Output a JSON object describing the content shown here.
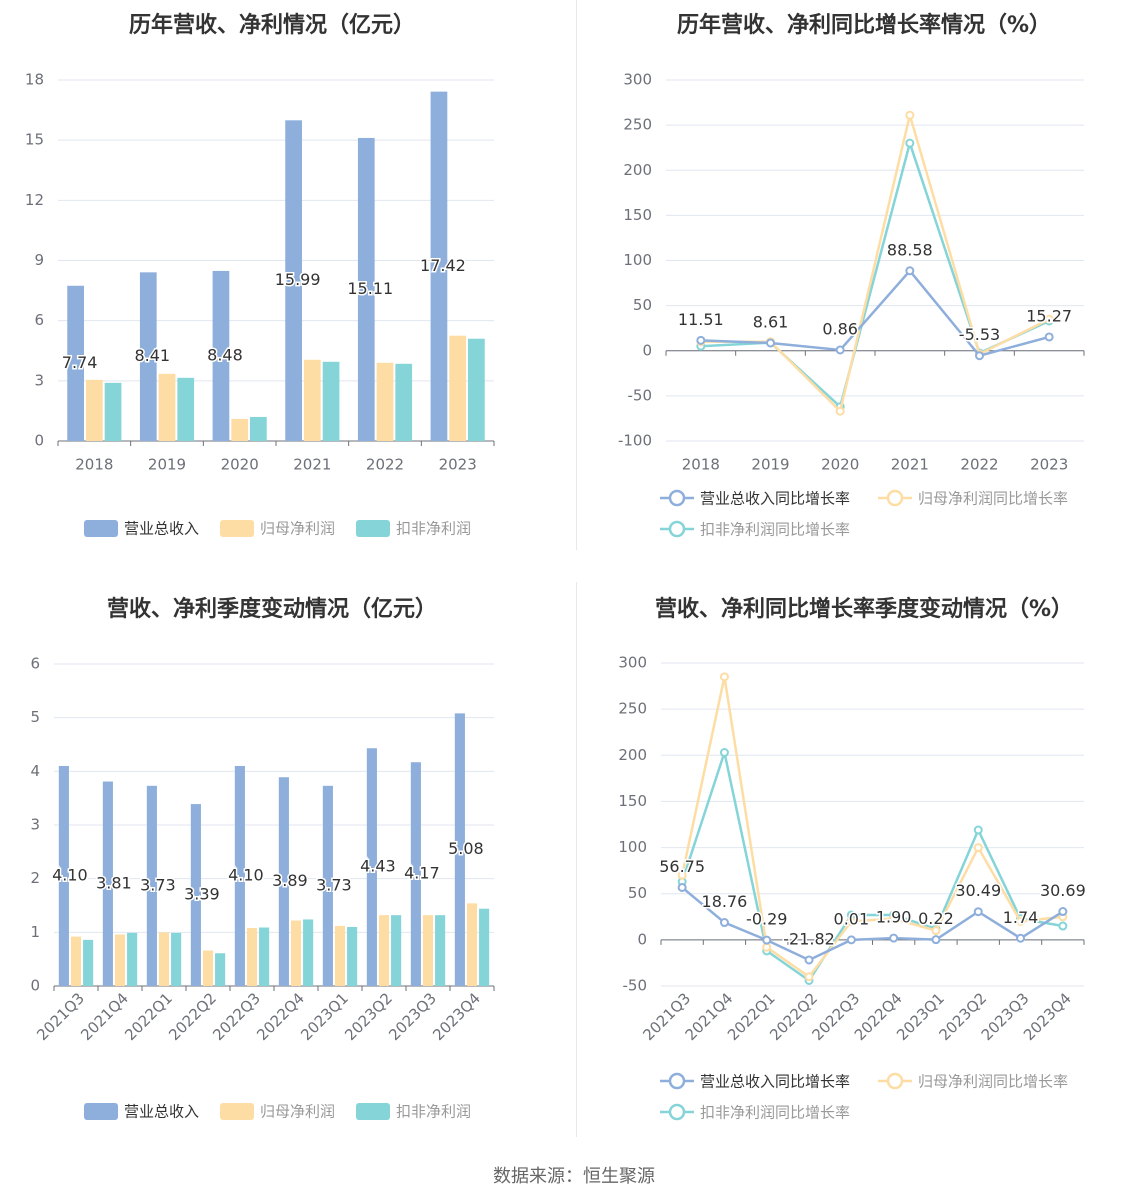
{
  "colors": {
    "revenue": "#8eaedb",
    "parent_profit": "#fedda4",
    "deducted_profit": "#84d4d8",
    "title": "#333333",
    "axis_text": "#6e7079",
    "grid": "#e0e6f1",
    "label": "#333333"
  },
  "source_text": "数据来源：恒生聚源",
  "chart_data": [
    {
      "type": "bar",
      "title": "历年营收、净利情况（亿元）",
      "categories": [
        "2018",
        "2019",
        "2020",
        "2021",
        "2022",
        "2023"
      ],
      "yticks": [
        "0",
        "3",
        "6",
        "9",
        "12",
        "15",
        "18"
      ],
      "ylim": [
        0,
        18
      ],
      "series": [
        {
          "name": "营业总收入",
          "values": [
            7.74,
            8.41,
            8.48,
            15.99,
            15.11,
            17.42
          ],
          "labels": [
            "7.74",
            "8.41",
            "8.48",
            "15.99",
            "15.11",
            "17.42"
          ]
        },
        {
          "name": "归母净利润",
          "values": [
            3.05,
            3.35,
            1.1,
            4.05,
            3.9,
            5.25
          ]
        },
        {
          "name": "扣非净利润",
          "values": [
            2.9,
            3.15,
            1.2,
            3.95,
            3.85,
            5.1
          ]
        }
      ]
    },
    {
      "type": "line",
      "title": "历年营收、净利同比增长率情况（%）",
      "categories": [
        "2018",
        "2019",
        "2020",
        "2021",
        "2022",
        "2023"
      ],
      "yticks": [
        "-100",
        "-50",
        "0",
        "50",
        "100",
        "150",
        "200",
        "250",
        "300"
      ],
      "ylim": [
        -100,
        300
      ],
      "series": [
        {
          "name": "营业总收入同比增长率",
          "values": [
            11.51,
            8.61,
            0.86,
            88.58,
            -5.53,
            15.27
          ],
          "labels": [
            "11.51",
            "8.61",
            "0.86",
            "88.58",
            "-5.53",
            "15.27"
          ]
        },
        {
          "name": "归母净利润同比增长率",
          "values": [
            10,
            10,
            -67,
            261,
            -3.7,
            35
          ]
        },
        {
          "name": "扣非净利润同比增长率",
          "values": [
            5,
            9,
            -62,
            230,
            -2.5,
            33
          ]
        }
      ]
    },
    {
      "type": "bar",
      "title": "营收、净利季度变动情况（亿元）",
      "categories": [
        "2021Q3",
        "2021Q4",
        "2022Q1",
        "2022Q2",
        "2022Q3",
        "2022Q4",
        "2023Q1",
        "2023Q2",
        "2023Q3",
        "2023Q4"
      ],
      "yticks": [
        "0",
        "1",
        "2",
        "3",
        "4",
        "5",
        "6"
      ],
      "ylim": [
        0,
        6
      ],
      "series": [
        {
          "name": "营业总收入",
          "values": [
            4.1,
            3.81,
            3.73,
            3.39,
            4.1,
            3.89,
            3.73,
            4.43,
            4.17,
            5.08
          ],
          "labels": [
            "4.10",
            "3.81",
            "3.73",
            "3.39",
            "4.10",
            "3.89",
            "3.73",
            "4.43",
            "4.17",
            "5.08"
          ]
        },
        {
          "name": "归母净利润",
          "values": [
            0.92,
            0.96,
            1.0,
            0.66,
            1.08,
            1.22,
            1.12,
            1.32,
            1.32,
            1.54
          ]
        },
        {
          "name": "扣非净利润",
          "values": [
            0.86,
            0.99,
            0.99,
            0.61,
            1.09,
            1.24,
            1.1,
            1.32,
            1.32,
            1.44
          ]
        }
      ]
    },
    {
      "type": "line",
      "title": "营收、净利同比增长率季度变动情况（%）",
      "categories": [
        "2021Q3",
        "2021Q4",
        "2022Q1",
        "2022Q2",
        "2022Q3",
        "2022Q4",
        "2023Q1",
        "2023Q2",
        "2023Q3",
        "2023Q4"
      ],
      "yticks": [
        "-50",
        "0",
        "50",
        "100",
        "150",
        "200",
        "250",
        "300"
      ],
      "ylim": [
        -50,
        300
      ],
      "series": [
        {
          "name": "营业总收入同比增长率",
          "values": [
            56.75,
            18.76,
            -0.29,
            -21.82,
            0.01,
            1.9,
            0.22,
            30.49,
            1.74,
            30.69
          ],
          "labels": [
            "56.75",
            "18.76",
            "-0.29",
            "-21.82",
            "0.01",
            "1.90",
            "0.22",
            "30.49",
            "1.74",
            "30.69"
          ]
        },
        {
          "name": "归母净利润同比增长率",
          "values": [
            70,
            285,
            -8,
            -40,
            20,
            23,
            10,
            100,
            20,
            25
          ]
        },
        {
          "name": "扣非净利润同比增长率",
          "values": [
            63,
            203,
            -12,
            -44,
            27,
            27,
            12,
            119,
            23,
            15
          ]
        }
      ]
    }
  ]
}
